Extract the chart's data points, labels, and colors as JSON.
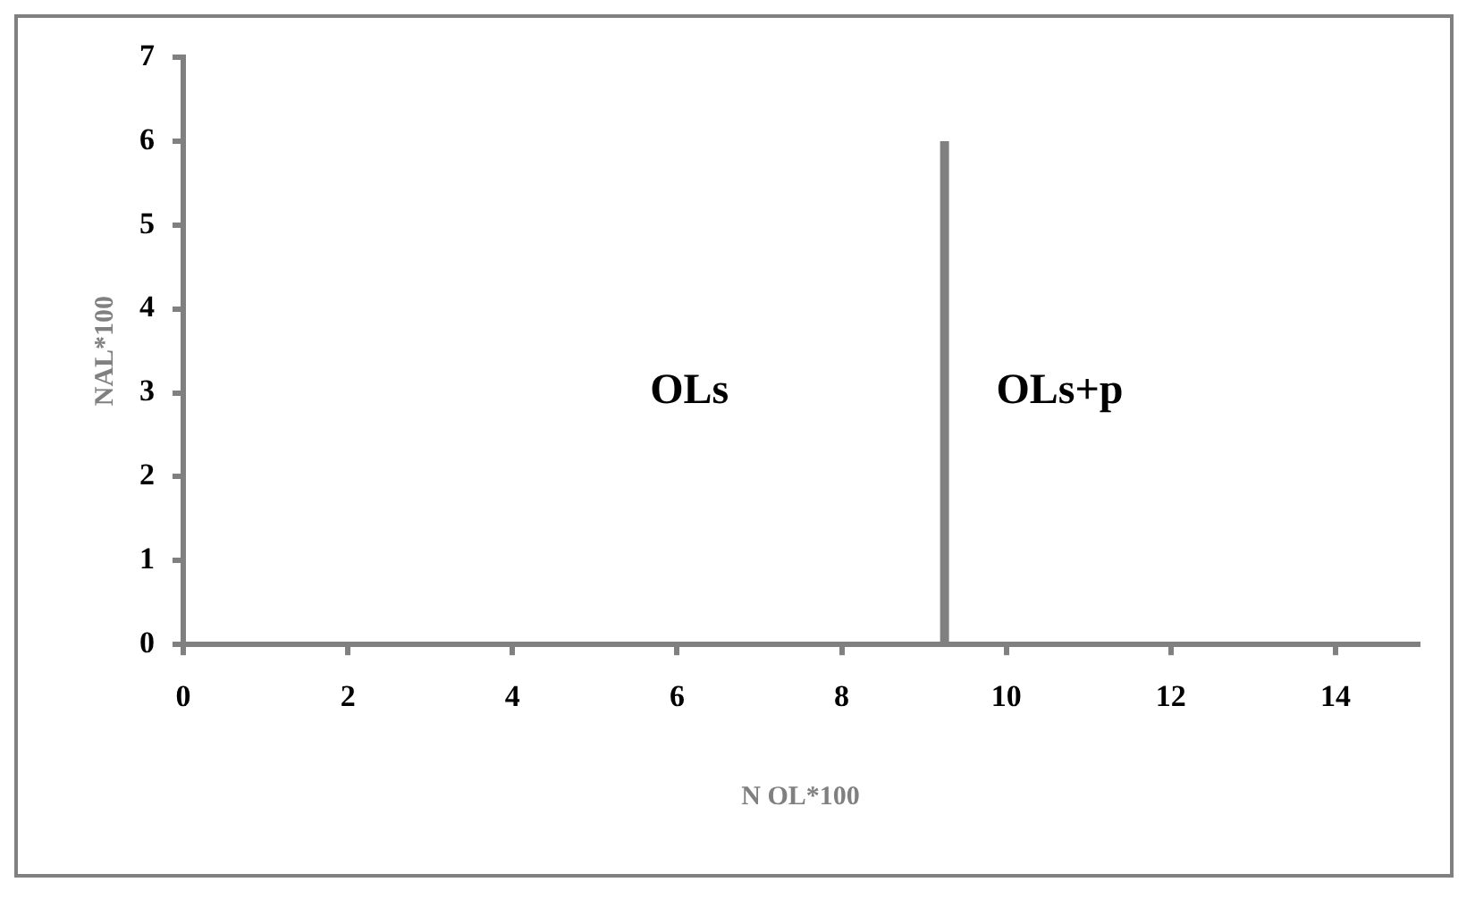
{
  "chart_data": {
    "type": "line",
    "xlabel": "N OL*100",
    "ylabel": "NAL*100",
    "xlim": [
      0,
      15
    ],
    "xticks": [
      0,
      2,
      4,
      6,
      8,
      10,
      12,
      14
    ],
    "ylim": [
      0,
      7
    ],
    "yticks": [
      0,
      1,
      2,
      3,
      4,
      5,
      6,
      7
    ],
    "series": [
      {
        "x": [
          9.25,
          9.25
        ],
        "values": [
          0,
          6
        ],
        "color": "#808080"
      }
    ],
    "annotations": [
      "OLs",
      "OLs+p"
    ],
    "grid": false,
    "legend": false,
    "marker": "none",
    "line_style": "solid"
  }
}
